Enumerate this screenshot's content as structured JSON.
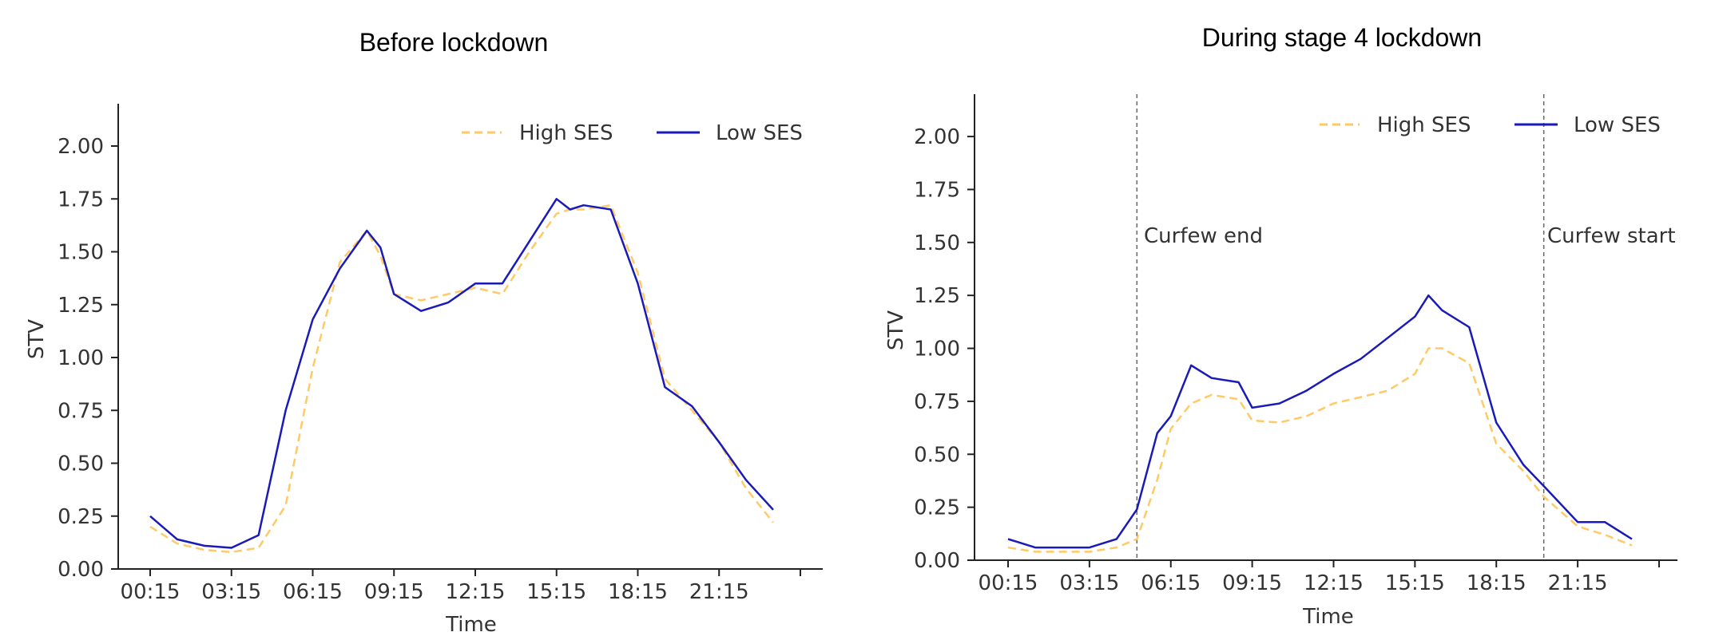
{
  "chart_data": [
    {
      "type": "line",
      "title": "Before lockdown",
      "xlabel": "Time",
      "ylabel": "STV",
      "ylim": [
        0,
        2.2
      ],
      "yticks": [
        "0.00",
        "0.25",
        "0.50",
        "0.75",
        "1.00",
        "1.25",
        "1.50",
        "1.75",
        "2.00"
      ],
      "xticks": [
        "00:15",
        "03:15",
        "06:15",
        "09:15",
        "12:15",
        "15:15",
        "18:15",
        "21:15"
      ],
      "x": [
        "00:15",
        "01:15",
        "02:15",
        "03:15",
        "04:15",
        "05:15",
        "06:15",
        "07:15",
        "08:15",
        "08:45",
        "09:15",
        "10:15",
        "11:15",
        "12:15",
        "13:15",
        "14:15",
        "15:15",
        "15:45",
        "16:15",
        "17:15",
        "18:15",
        "19:15",
        "20:15",
        "21:15",
        "22:15",
        "23:15"
      ],
      "legend_position": "top-right",
      "grid": false,
      "series": [
        {
          "name": "High SES",
          "style": "dashed",
          "color": "#ffc966",
          "values": [
            0.2,
            0.12,
            0.09,
            0.08,
            0.1,
            0.3,
            0.95,
            1.45,
            1.6,
            1.48,
            1.3,
            1.27,
            1.3,
            1.33,
            1.3,
            1.5,
            1.68,
            1.7,
            1.7,
            1.72,
            1.4,
            0.9,
            0.75,
            0.6,
            0.38,
            0.22
          ]
        },
        {
          "name": "Low SES",
          "style": "solid",
          "color": "#1a1ab8",
          "values": [
            0.25,
            0.14,
            0.11,
            0.1,
            0.16,
            0.75,
            1.18,
            1.42,
            1.6,
            1.52,
            1.3,
            1.22,
            1.26,
            1.35,
            1.35,
            1.55,
            1.75,
            1.7,
            1.72,
            1.7,
            1.35,
            0.86,
            0.77,
            0.6,
            0.42,
            0.28
          ]
        }
      ]
    },
    {
      "type": "line",
      "title": "During stage 4 lockdown",
      "xlabel": "Time",
      "ylabel": "STV",
      "ylim": [
        0,
        2.2
      ],
      "yticks": [
        "0.00",
        "0.25",
        "0.50",
        "0.75",
        "1.00",
        "1.25",
        "1.50",
        "1.75",
        "2.00"
      ],
      "xticks": [
        "00:15",
        "03:15",
        "06:15",
        "09:15",
        "12:15",
        "15:15",
        "18:15",
        "21:15"
      ],
      "x": [
        "00:15",
        "01:15",
        "02:15",
        "03:15",
        "04:15",
        "05:00",
        "05:45",
        "06:15",
        "07:00",
        "07:45",
        "08:45",
        "09:15",
        "10:15",
        "11:15",
        "12:15",
        "13:15",
        "14:15",
        "15:15",
        "15:45",
        "16:15",
        "17:15",
        "18:15",
        "19:15",
        "20:00",
        "21:15",
        "22:15",
        "23:15"
      ],
      "legend_position": "top-right",
      "grid": false,
      "annotations": [
        {
          "text": "Curfew end",
          "x": "05:00"
        },
        {
          "text": "Curfew start",
          "x": "20:00"
        }
      ],
      "series": [
        {
          "name": "High SES",
          "style": "dashed",
          "color": "#ffc966",
          "values": [
            0.06,
            0.04,
            0.04,
            0.04,
            0.06,
            0.1,
            0.38,
            0.62,
            0.74,
            0.78,
            0.76,
            0.66,
            0.65,
            0.68,
            0.74,
            0.77,
            0.8,
            0.88,
            1.0,
            1.0,
            0.93,
            0.55,
            0.42,
            0.3,
            0.16,
            0.12,
            0.07
          ]
        },
        {
          "name": "Low SES",
          "style": "solid",
          "color": "#1a1ab8",
          "values": [
            0.1,
            0.06,
            0.06,
            0.06,
            0.1,
            0.24,
            0.6,
            0.68,
            0.92,
            0.86,
            0.84,
            0.72,
            0.74,
            0.8,
            0.88,
            0.95,
            1.05,
            1.15,
            1.25,
            1.18,
            1.1,
            0.65,
            0.45,
            0.35,
            0.18,
            0.18,
            0.1
          ]
        }
      ]
    }
  ]
}
